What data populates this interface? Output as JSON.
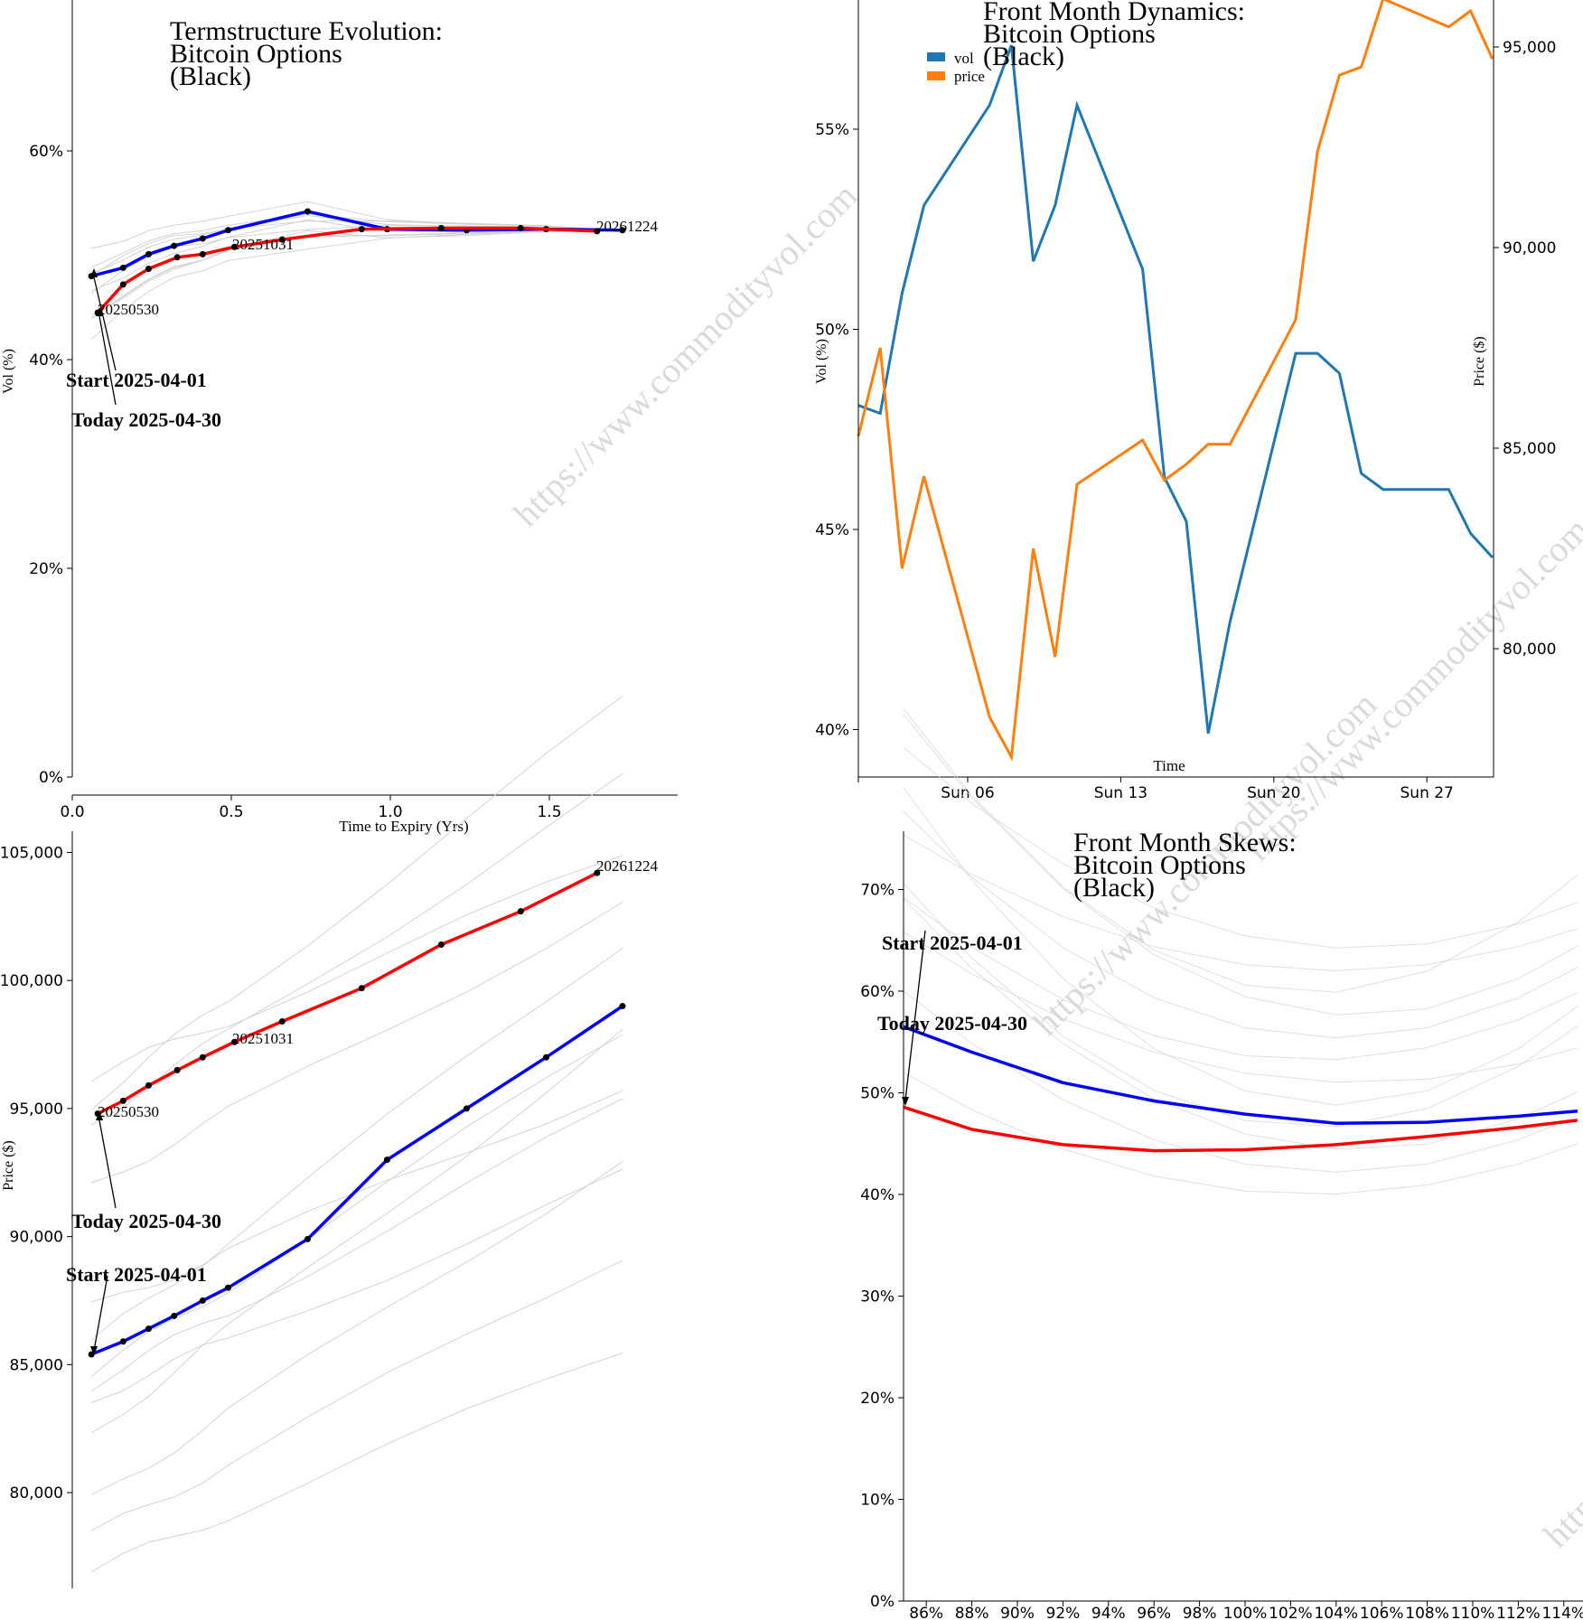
{
  "watermark": "https://www.commodityvol.com",
  "colors": {
    "vol": "#1f77b4",
    "price": "#ff7f0e",
    "today": "#ff0000",
    "start": "#0000ff",
    "history": "#d3d3d3"
  },
  "chart_data": [
    {
      "id": "termstructure",
      "type": "line",
      "title": [
        "Termstructure Evolution:",
        "Bitcoin Options",
        "(Black)"
      ],
      "xlabel": "Time to Expiry (Yrs)",
      "ylabel": "Vol (%)",
      "xlim": [
        0,
        1.9
      ],
      "ylim": [
        0,
        75
      ],
      "xticks": [
        "0.0",
        "0.5",
        "1.0",
        "1.5"
      ],
      "yticks": [
        "0%",
        "20%",
        "40%",
        "60%"
      ],
      "labels": [
        "20250530",
        "20251031",
        "20261224"
      ],
      "annotations": [
        "Start 2025-04-01",
        "Today 2025-04-30"
      ],
      "series": [
        {
          "role": "start",
          "x": [
            0.06,
            0.16,
            0.24,
            0.32,
            0.41,
            0.49,
            0.74,
            0.99,
            1.24,
            1.49,
            1.73
          ],
          "y": [
            48.0,
            48.8,
            50.1,
            50.9,
            51.6,
            52.4,
            54.2,
            52.5,
            52.4,
            52.5,
            52.4
          ]
        },
        {
          "role": "today",
          "x": [
            0.08,
            0.16,
            0.24,
            0.33,
            0.41,
            0.51,
            0.66,
            0.91,
            1.16,
            1.41,
            1.65
          ],
          "y": [
            44.5,
            47.2,
            48.7,
            49.8,
            50.1,
            50.8,
            51.5,
            52.5,
            52.6,
            52.6,
            52.3
          ]
        }
      ]
    },
    {
      "id": "dynamics",
      "type": "line",
      "title": [
        "Front Month Dynamics:",
        "Bitcoin Options",
        "(Black)"
      ],
      "xlabel": "Time",
      "ylabel": "Vol (%)",
      "y2label": "Price ($)",
      "legend": [
        "vol",
        "price"
      ],
      "xticks": [
        "Sun 06",
        "Sun 13",
        "Sun 20",
        "Sun 27"
      ],
      "yticks": [
        "40%",
        "45%",
        "50%",
        "55%"
      ],
      "y2ticks": [
        "80,000",
        "85,000",
        "90,000",
        "95,000"
      ],
      "dates": [
        "2025-04-01",
        "2025-04-02",
        "2025-04-03",
        "2025-04-04",
        "2025-04-07",
        "2025-04-08",
        "2025-04-09",
        "2025-04-10",
        "2025-04-11",
        "2025-04-14",
        "2025-04-15",
        "2025-04-16",
        "2025-04-17",
        "2025-04-18",
        "2025-04-21",
        "2025-04-22",
        "2025-04-23",
        "2025-04-24",
        "2025-04-25",
        "2025-04-28",
        "2025-04-29",
        "2025-04-30"
      ],
      "vol": [
        48.1,
        47.9,
        50.9,
        53.1,
        55.6,
        57.1,
        51.7,
        53.1,
        55.6,
        51.5,
        46.3,
        45.2,
        39.9,
        42.7,
        49.4,
        49.4,
        48.9,
        46.4,
        46.0,
        46.0,
        44.9,
        44.3
      ],
      "price": [
        85300,
        87500,
        82000,
        84300,
        78300,
        77300,
        82500,
        79800,
        84100,
        85200,
        84200,
        84600,
        85100,
        85100,
        88200,
        92400,
        94300,
        94500,
        96200,
        95500,
        95900,
        94700
      ]
    },
    {
      "id": "forward",
      "type": "line",
      "ylabel": "Price ($)",
      "ylim": [
        76800,
        106000
      ],
      "yticks": [
        "80,000",
        "85,000",
        "90,000",
        "95,000",
        "100,000",
        "105,000"
      ],
      "labels": [
        "20250530",
        "20251031",
        "20261224"
      ],
      "annotations": [
        "Today 2025-04-30",
        "Start 2025-04-01"
      ],
      "series": [
        {
          "role": "start",
          "x": [
            0.06,
            0.16,
            0.24,
            0.32,
            0.41,
            0.49,
            0.74,
            0.99,
            1.24,
            1.49,
            1.73
          ],
          "y": [
            85400,
            85900,
            86400,
            86900,
            87500,
            88000,
            89900,
            93000,
            95000,
            97000,
            99000
          ]
        },
        {
          "role": "today",
          "x": [
            0.08,
            0.16,
            0.24,
            0.33,
            0.41,
            0.51,
            0.66,
            0.91,
            1.16,
            1.41,
            1.65
          ],
          "y": [
            94800,
            95300,
            95900,
            96500,
            97000,
            97600,
            98400,
            99700,
            101400,
            102700,
            104200
          ]
        }
      ]
    },
    {
      "id": "skews",
      "type": "line",
      "title": [
        "Front Month Skews:",
        "Bitcoin Options",
        "(Black)"
      ],
      "ylim": [
        0,
        76
      ],
      "yticks": [
        "0%",
        "10%",
        "20%",
        "30%",
        "40%",
        "50%",
        "60%",
        "70%"
      ],
      "xticks": [
        "86%",
        "88%",
        "90%",
        "92%",
        "94%",
        "96%",
        "98%",
        "100%",
        "102%",
        "104%",
        "106%",
        "108%",
        "110%",
        "112%",
        "114%"
      ],
      "annotations": [
        "Start 2025-04-01",
        "Today 2025-04-30"
      ],
      "series": [
        {
          "role": "start",
          "x": [
            85,
            88,
            92,
            96,
            100,
            104,
            108,
            112,
            114.6
          ],
          "y": [
            56.5,
            54.0,
            51.0,
            49.2,
            47.9,
            47.0,
            47.1,
            47.7,
            48.2
          ]
        },
        {
          "role": "today",
          "x": [
            85,
            88,
            92,
            96,
            100,
            104,
            108,
            112,
            114.6
          ],
          "y": [
            48.6,
            46.4,
            44.9,
            44.3,
            44.4,
            44.9,
            45.7,
            46.6,
            47.3
          ]
        }
      ]
    }
  ]
}
